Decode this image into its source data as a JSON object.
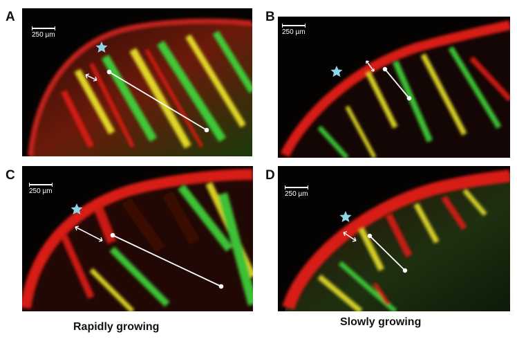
{
  "panels": [
    {
      "letter": "A",
      "scale_label": "250 µm"
    },
    {
      "letter": "B",
      "scale_label": "250 µm"
    },
    {
      "letter": "C",
      "scale_label": "250 µm"
    },
    {
      "letter": "D",
      "scale_label": "250 µm"
    }
  ],
  "captions": {
    "left": "Rapidly growing",
    "right": "Slowly growing"
  },
  "colors": {
    "red": "#d81a12",
    "green": "#3fd23a",
    "yellow": "#e8e02a",
    "star": "#8fd3e6"
  }
}
